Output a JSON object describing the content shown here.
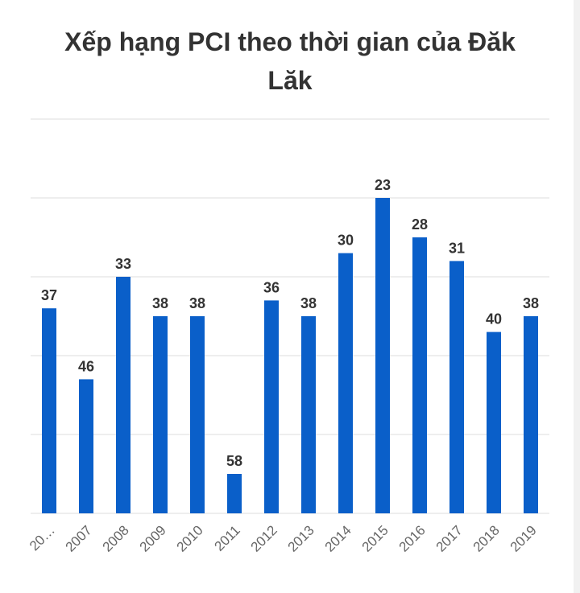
{
  "chart_data": {
    "type": "bar",
    "title": "Xếp hạng PCI theo thời gian của Đăk Lăk",
    "categories": [
      "20…",
      "2007",
      "2008",
      "2009",
      "2010",
      "2011",
      "2012",
      "2013",
      "2014",
      "2015",
      "2016",
      "2017",
      "2018",
      "2019"
    ],
    "values": [
      37,
      46,
      33,
      38,
      38,
      58,
      36,
      38,
      30,
      23,
      28,
      31,
      40,
      38
    ],
    "color": "#0a5fc9",
    "ylim": [
      63,
      13
    ],
    "yticks": [
      63,
      53,
      43,
      33,
      23,
      13
    ],
    "grid": true
  }
}
